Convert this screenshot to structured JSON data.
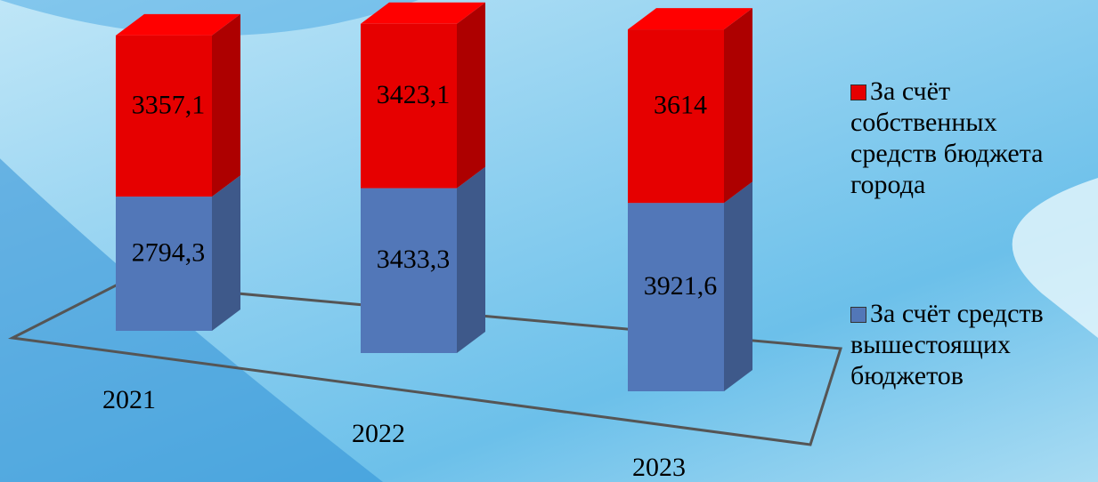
{
  "chart_data": {
    "type": "bar",
    "stacked": true,
    "categories": [
      "2021",
      "2022",
      "2023"
    ],
    "series": [
      {
        "name": "За счёт средств вышестоящих бюджетов",
        "color": "#5277b8",
        "values": [
          2794.3,
          3433.3,
          3921.6
        ],
        "value_labels": [
          "2794,3",
          "3433,3",
          "3921,6"
        ]
      },
      {
        "name": "За счёт собственных средств бюджета города",
        "color": "#e60000",
        "values": [
          3357.1,
          3423.1,
          3614
        ],
        "value_labels": [
          "3357,1",
          "3423,1",
          "3614"
        ]
      }
    ],
    "legend": "right"
  }
}
